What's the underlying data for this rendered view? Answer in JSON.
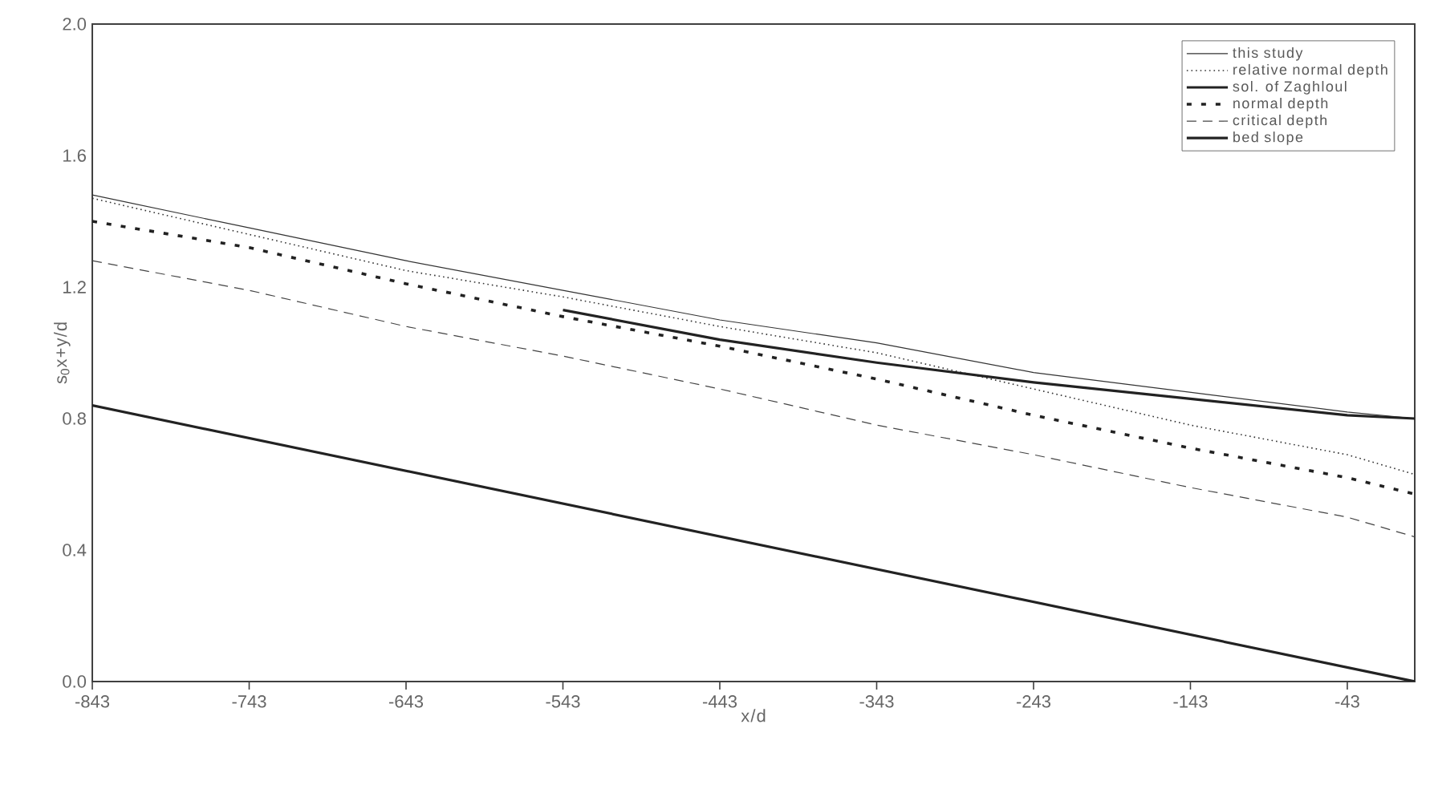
{
  "chart_data": {
    "type": "line",
    "xlabel": "x/d",
    "ylabel": "s$_{0}$x+y/d",
    "xlim": [
      -843,
      0
    ],
    "ylim": [
      0,
      2.0
    ],
    "xticks": [
      -843,
      -743,
      -643,
      -543,
      -443,
      -343,
      -243,
      -143,
      -43
    ],
    "yticks": [
      {
        "value": 0,
        "label": "0.0"
      },
      {
        "value": 0.4,
        "label": "0.4"
      },
      {
        "value": 0.8,
        "label": "0.8"
      },
      {
        "value": 1.2,
        "label": "1.2"
      },
      {
        "value": 1.6,
        "label": "1.6"
      },
      {
        "value": 2.0,
        "label": "2.0"
      }
    ],
    "grid": false,
    "legend": "top right",
    "marker": "none",
    "series": [
      {
        "name": "this study",
        "color": "#333333",
        "line_style": "solid",
        "x": [
          -843,
          -743,
          -643,
          -543,
          -443,
          -343,
          -243,
          -143,
          -43,
          0
        ],
        "values": [
          1.48,
          1.38,
          1.28,
          1.19,
          1.1,
          1.03,
          0.94,
          0.88,
          0.82,
          0.8
        ]
      },
      {
        "name": "relative normal depth",
        "color": "#333333",
        "line_style": "dotted",
        "x": [
          -843,
          -743,
          -643,
          -543,
          -443,
          -343,
          -243,
          -143,
          -43,
          0
        ],
        "values": [
          1.47,
          1.36,
          1.25,
          1.17,
          1.08,
          1.0,
          0.89,
          0.78,
          0.69,
          0.63
        ]
      },
      {
        "name": "sol. of Zaghloul",
        "color": "#222222",
        "line_style": "solid",
        "x": [
          -543,
          -443,
          -343,
          -243,
          -143,
          -43,
          0
        ],
        "values": [
          1.13,
          1.04,
          0.97,
          0.91,
          0.86,
          0.81,
          0.8
        ]
      },
      {
        "name": "normal depth",
        "color": "#222222",
        "line_style": "dashed",
        "x": [
          -843,
          -743,
          -643,
          -543,
          -443,
          -343,
          -243,
          -143,
          -43,
          0
        ],
        "values": [
          1.4,
          1.32,
          1.21,
          1.11,
          1.02,
          0.92,
          0.81,
          0.71,
          0.62,
          0.57
        ]
      },
      {
        "name": "critical depth",
        "color": "#444444",
        "line_style": "dashed",
        "x": [
          -843,
          -743,
          -643,
          -543,
          -443,
          -343,
          -243,
          -143,
          -43,
          0
        ],
        "values": [
          1.28,
          1.19,
          1.08,
          0.99,
          0.89,
          0.78,
          0.69,
          0.59,
          0.5,
          0.44
        ]
      },
      {
        "name": "bed slope",
        "color": "#222222",
        "line_style": "solid",
        "x": [
          -843,
          0
        ],
        "values": [
          0.84,
          0
        ]
      }
    ]
  }
}
